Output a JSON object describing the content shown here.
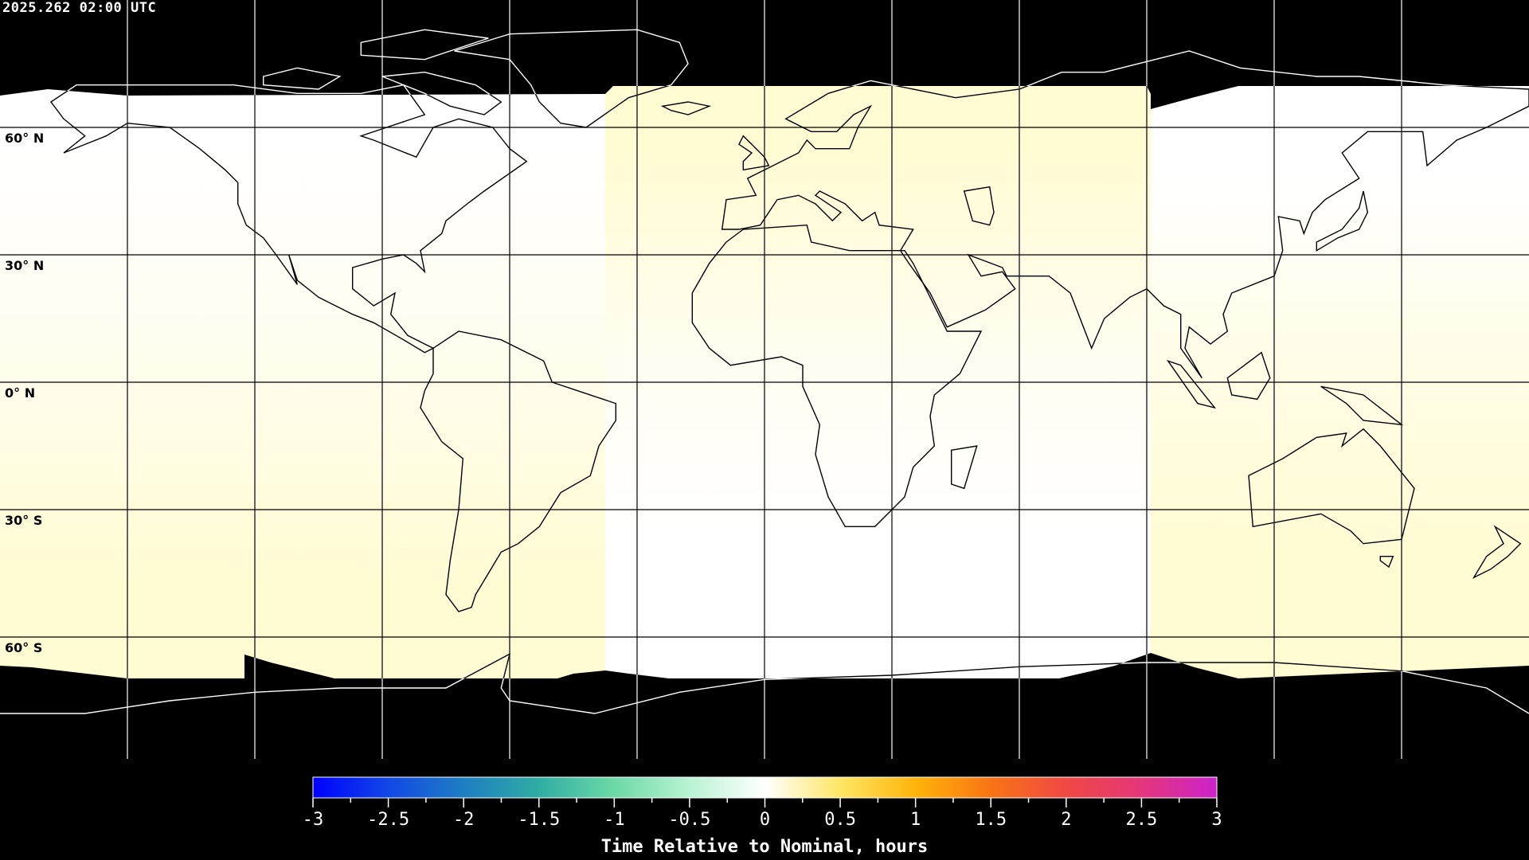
{
  "header": {
    "timestamp": "2025.262 02:00 UTC"
  },
  "map": {
    "projection": "equirectangular",
    "lon_range": [
      -180,
      180
    ],
    "lat_range": [
      -90,
      90
    ],
    "graticule_spacing_deg": 30,
    "lat_labels": [
      "60° N",
      "30° N",
      "0° N",
      "30° S",
      "60° S"
    ],
    "colors": {
      "off_scan": "#000000",
      "near_zero": "#ffffff",
      "slightly_late": "#fffbd2",
      "coastline_on_data": "#000000",
      "coastline_off_data": "#ffffff"
    }
  },
  "colorbar": {
    "min": -3,
    "max": 3,
    "tick_labels": [
      "-3",
      "-2.5",
      "-2",
      "-1.5",
      "-1",
      "-0.5",
      "0",
      "0.5",
      "1",
      "1.5",
      "2",
      "2.5",
      "3"
    ],
    "label": "Time Relative to Nominal, hours",
    "colormap": [
      {
        "v": -3,
        "c": "#0000ff"
      },
      {
        "v": -2.5,
        "c": "#1248e6"
      },
      {
        "v": -2,
        "c": "#1e7ec2"
      },
      {
        "v": -1.5,
        "c": "#30ada4"
      },
      {
        "v": -1,
        "c": "#6cd9a6"
      },
      {
        "v": -0.5,
        "c": "#b9f3d2"
      },
      {
        "v": 0,
        "c": "#ffffff"
      },
      {
        "v": 0.5,
        "c": "#ffe664"
      },
      {
        "v": 1,
        "c": "#ffb40a"
      },
      {
        "v": 1.5,
        "c": "#f87414"
      },
      {
        "v": 2,
        "c": "#f04844"
      },
      {
        "v": 2.5,
        "c": "#e4367a"
      },
      {
        "v": 3,
        "c": "#cc22cc"
      }
    ]
  }
}
